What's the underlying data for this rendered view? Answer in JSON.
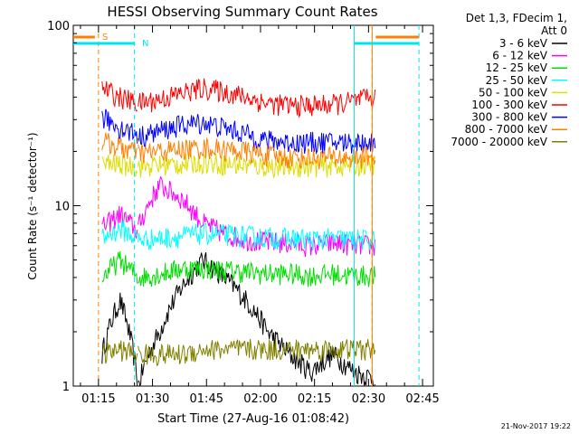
{
  "chart_data": {
    "type": "line",
    "title": "HESSI Observing Summary Count Rates",
    "xlabel": "Start Time (27-Aug-16 01:08:42)",
    "ylabel": "Count Rate (s⁻¹ detector⁻¹)",
    "yscale": "log",
    "ylim": [
      1,
      100
    ],
    "xlim": [
      "01:08",
      "02:48"
    ],
    "y_ticks": [
      "1",
      "10",
      "100"
    ],
    "x_ticks": [
      "01:15",
      "01:30",
      "01:45",
      "02:00",
      "02:15",
      "02:30",
      "02:45"
    ],
    "legend_header": [
      "Det 1,3, FDecim 1,",
      "Att 0"
    ],
    "legend_position": "right",
    "footer": "21-Nov-2017 19:22",
    "flags": [
      {
        "label": "S",
        "color": "#ff7f00"
      },
      {
        "label": "N",
        "color": "#00e5ee"
      }
    ],
    "markers": {
      "saa": {
        "color": "#ff7f00",
        "times": [
          "01:15",
          "02:31"
        ],
        "bars": [
          [
            "01:08",
            "01:14"
          ],
          [
            "02:32",
            "02:44"
          ]
        ]
      },
      "night": {
        "color": "#00e5ee",
        "times": [
          "01:25",
          "02:44"
        ],
        "bars": [
          [
            "01:08",
            "01:25"
          ],
          [
            "02:26",
            "02:44"
          ]
        ]
      },
      "data_gap_times": [
        "02:26",
        "02:31"
      ]
    },
    "series": [
      {
        "name": "3 - 6 keV",
        "color": "#000000",
        "values": [
          [
            1.5,
            3.0,
            1.0
          ],
          [
            1.0,
            2.0,
            3.5,
            5.0,
            4.0,
            3.0,
            2.0,
            1.5,
            1.2,
            1.5,
            1.2,
            1.1
          ]
        ]
      },
      {
        "name": "6 - 12 keV",
        "color": "#ff00ff",
        "values": [
          [
            7.5,
            9.0,
            7.2
          ],
          [
            7.5,
            13.0,
            11.0,
            8.0,
            7.0,
            6.5,
            6.3,
            6.2,
            6.0,
            6.2,
            6.1,
            6.0
          ]
        ]
      },
      {
        "name": "12 - 25 keV",
        "color": "#00dd00",
        "values": [
          [
            4.0,
            5.0,
            4.0
          ],
          [
            4.0,
            4.2,
            4.5,
            4.5,
            4.4,
            4.3,
            4.2,
            4.2,
            4.1,
            4.2,
            4.1,
            4.1
          ]
        ]
      },
      {
        "name": "25 - 50 keV",
        "color": "#00ffff",
        "values": [
          [
            6.5,
            7.5,
            6.5
          ],
          [
            6.5,
            6.6,
            6.8,
            7.0,
            6.9,
            6.8,
            6.7,
            6.6,
            6.5,
            6.6,
            6.5,
            6.5
          ]
        ]
      },
      {
        "name": "50 - 100 keV",
        "color": "#dddd00",
        "values": [
          [
            17.0,
            17.0,
            16.5
          ],
          [
            16.5,
            16.8,
            17.0,
            17.5,
            17.0,
            16.8,
            16.5,
            16.6,
            16.6,
            16.7,
            16.8,
            17.0
          ]
        ]
      },
      {
        "name": "100 - 300 keV",
        "color": "#ff0000",
        "values": [
          [
            45.0,
            40.0,
            37.0
          ],
          [
            37.0,
            39.0,
            42.0,
            45.0,
            43.0,
            40.0,
            37.0,
            36.0,
            36.0,
            36.5,
            38.0,
            40.0
          ]
        ]
      },
      {
        "name": "300 - 800 keV",
        "color": "#0000ff",
        "values": [
          [
            31.0,
            27.0,
            25.0
          ],
          [
            24.0,
            26.0,
            28.0,
            29.0,
            27.0,
            25.0,
            23.0,
            22.5,
            22.5,
            22.5,
            22.5,
            22.5
          ]
        ]
      },
      {
        "name": "800 - 7000 keV",
        "color": "#ff7f00",
        "values": [
          [
            23.0,
            21.0,
            20.0
          ],
          [
            19.5,
            20.0,
            20.5,
            21.0,
            20.5,
            20.0,
            19.0,
            18.5,
            18.5,
            18.5,
            18.5,
            19.0
          ]
        ]
      },
      {
        "name": "7000 - 20000 keV",
        "color": "#808000",
        "values": [
          [
            1.5,
            1.6,
            1.5
          ],
          [
            1.5,
            1.5,
            1.5,
            1.6,
            1.6,
            1.6,
            1.6,
            1.6,
            1.6,
            1.6,
            1.6,
            1.6
          ]
        ]
      }
    ],
    "segments": [
      {
        "start": "01:16",
        "end": "01:26"
      },
      {
        "start": "01:26",
        "end": "02:32"
      }
    ]
  }
}
